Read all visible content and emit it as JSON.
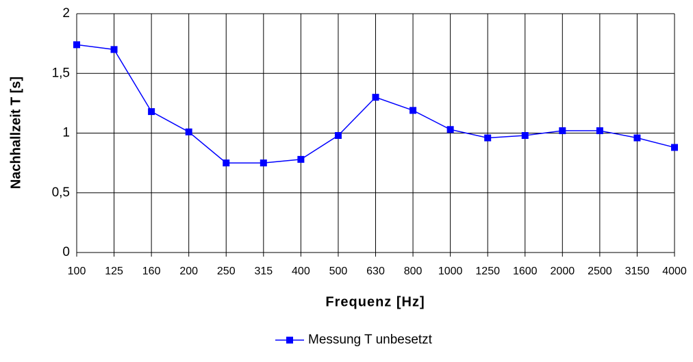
{
  "chart_data": {
    "type": "line",
    "xlabel": "Frequenz [Hz]",
    "ylabel": "Nachhallzeit T [s]",
    "categories": [
      "100",
      "125",
      "160",
      "200",
      "250",
      "315",
      "400",
      "500",
      "630",
      "800",
      "1000",
      "1250",
      "1600",
      "2000",
      "2500",
      "3150",
      "4000"
    ],
    "series": [
      {
        "name": "Messung T unbesetzt",
        "color": "#0000ff",
        "values": [
          1.74,
          1.7,
          1.18,
          1.01,
          0.75,
          0.75,
          0.78,
          0.98,
          1.3,
          1.19,
          1.03,
          0.96,
          0.98,
          1.02,
          1.02,
          0.96,
          0.88
        ]
      }
    ],
    "ylim": [
      0,
      2
    ],
    "yticks": [
      0,
      {
        "value": 0.5,
        "label": "0,5"
      },
      1,
      {
        "value": 1.5,
        "label": "1,5"
      },
      2
    ],
    "grid": true,
    "legend": "bottom"
  }
}
